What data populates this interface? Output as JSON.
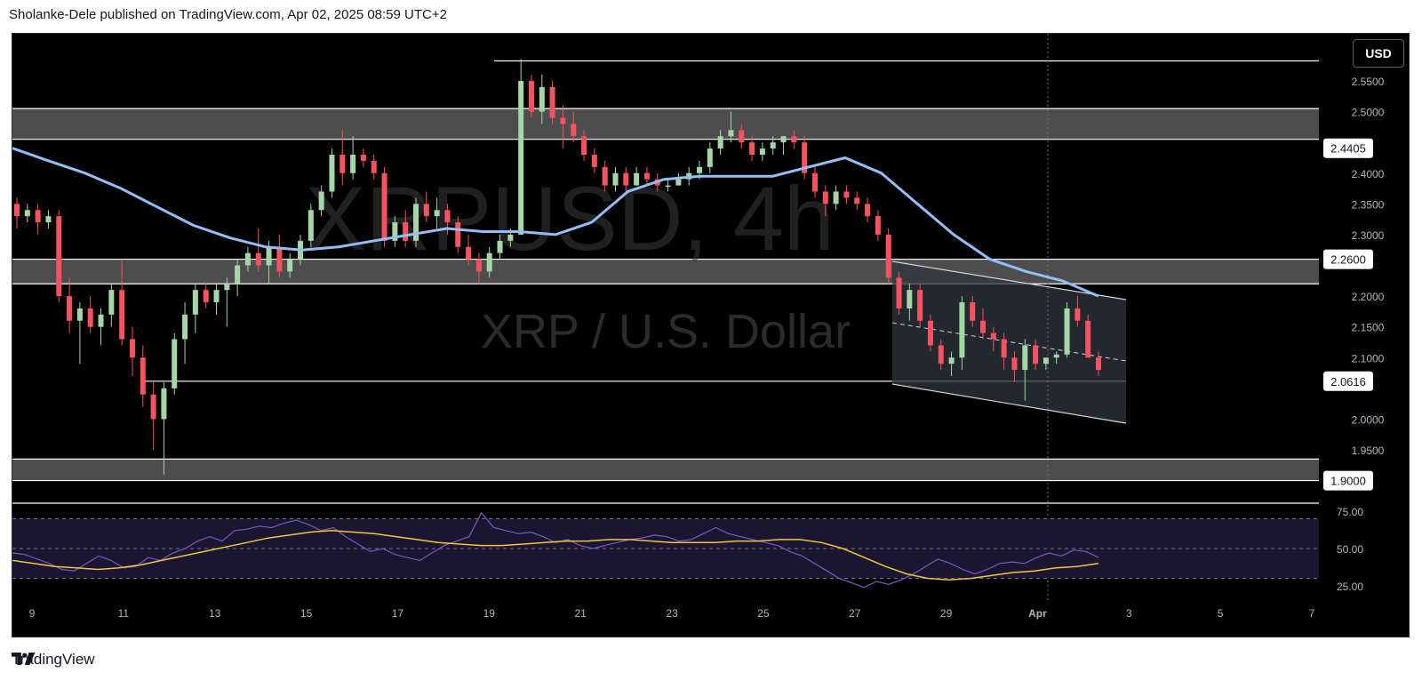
{
  "header": {
    "text": "Sholanke-Dele published on TradingView.com, Apr 02, 2025 08:59 UTC+2"
  },
  "watermark": {
    "symbol": "XRPUSD, 4h",
    "name": "XRP / U.S. Dollar"
  },
  "currency_button": "USD",
  "footer": {
    "brand": "TradingView"
  },
  "colors": {
    "background": "#000000",
    "up": "#a5d6a7",
    "down": "#f7525f",
    "ma": "#90bff9",
    "rsi": "#7e57c2",
    "rsi_ma": "#f0c53d",
    "zone": "#5a5a5a",
    "channel": "#ffffff"
  },
  "chart_data": {
    "type": "candlestick",
    "symbol": "XRPUSD",
    "timeframe": "4h",
    "price_axis": {
      "ticks": [
        "2.5500",
        "2.5000",
        "2.4000",
        "2.3500",
        "2.3000",
        "2.2000",
        "2.1500",
        "2.1000",
        "2.0000",
        "1.9500"
      ],
      "range": [
        1.86,
        2.605
      ]
    },
    "price_labels": [
      {
        "value": 2.4405,
        "text": "2.4405"
      },
      {
        "value": 2.26,
        "text": "2.2600"
      },
      {
        "value": 2.0616,
        "text": "2.0616"
      },
      {
        "value": 1.9,
        "text": "1.9000"
      }
    ],
    "time_axis": [
      "9",
      "11",
      "13",
      "15",
      "17",
      "19",
      "21",
      "23",
      "25",
      "27",
      "29",
      "Apr",
      "3",
      "5",
      "7"
    ],
    "zones": [
      {
        "from": 2.455,
        "to": 2.505
      },
      {
        "from": 2.22,
        "to": 2.26
      },
      {
        "from": 1.9,
        "to": 1.935
      }
    ],
    "horizontal_lines": [
      2.5825,
      2.0616
    ],
    "candles": [
      [
        2.35,
        2.36,
        2.31,
        2.33
      ],
      [
        2.33,
        2.35,
        2.32,
        2.34
      ],
      [
        2.34,
        2.35,
        2.3,
        2.32
      ],
      [
        2.32,
        2.34,
        2.31,
        2.33
      ],
      [
        2.33,
        2.34,
        2.19,
        2.2
      ],
      [
        2.2,
        2.23,
        2.14,
        2.16
      ],
      [
        2.16,
        2.19,
        2.09,
        2.18
      ],
      [
        2.18,
        2.2,
        2.14,
        2.15
      ],
      [
        2.15,
        2.18,
        2.12,
        2.17
      ],
      [
        2.17,
        2.22,
        2.15,
        2.21
      ],
      [
        2.21,
        2.26,
        2.12,
        2.13
      ],
      [
        2.13,
        2.15,
        2.07,
        2.1
      ],
      [
        2.1,
        2.12,
        2.02,
        2.04
      ],
      [
        2.04,
        2.06,
        1.95,
        2.0
      ],
      [
        2.0,
        2.06,
        1.91,
        2.05
      ],
      [
        2.05,
        2.14,
        2.04,
        2.13
      ],
      [
        2.13,
        2.19,
        2.09,
        2.17
      ],
      [
        2.17,
        2.22,
        2.14,
        2.21
      ],
      [
        2.21,
        2.22,
        2.18,
        2.19
      ],
      [
        2.19,
        2.22,
        2.17,
        2.21
      ],
      [
        2.21,
        2.23,
        2.15,
        2.22
      ],
      [
        2.22,
        2.26,
        2.2,
        2.25
      ],
      [
        2.25,
        2.28,
        2.24,
        2.27
      ],
      [
        2.27,
        2.31,
        2.24,
        2.25
      ],
      [
        2.25,
        2.29,
        2.22,
        2.28
      ],
      [
        2.28,
        2.3,
        2.23,
        2.24
      ],
      [
        2.24,
        2.27,
        2.23,
        2.26
      ],
      [
        2.26,
        2.3,
        2.25,
        2.29
      ],
      [
        2.29,
        2.35,
        2.28,
        2.34
      ],
      [
        2.34,
        2.38,
        2.33,
        2.37
      ],
      [
        2.37,
        2.44,
        2.36,
        2.43
      ],
      [
        2.43,
        2.47,
        2.38,
        2.4
      ],
      [
        2.4,
        2.46,
        2.39,
        2.43
      ],
      [
        2.43,
        2.44,
        2.41,
        2.42
      ],
      [
        2.42,
        2.43,
        2.39,
        2.4
      ],
      [
        2.4,
        2.41,
        2.28,
        2.29
      ],
      [
        2.29,
        2.33,
        2.28,
        2.32
      ],
      [
        2.32,
        2.34,
        2.28,
        2.29
      ],
      [
        2.29,
        2.36,
        2.28,
        2.35
      ],
      [
        2.35,
        2.37,
        2.32,
        2.33
      ],
      [
        2.33,
        2.36,
        2.31,
        2.34
      ],
      [
        2.34,
        2.35,
        2.3,
        2.32
      ],
      [
        2.32,
        2.33,
        2.27,
        2.28
      ],
      [
        2.28,
        2.3,
        2.25,
        2.26
      ],
      [
        2.26,
        2.27,
        2.22,
        2.24
      ],
      [
        2.24,
        2.28,
        2.23,
        2.27
      ],
      [
        2.27,
        2.3,
        2.26,
        2.29
      ],
      [
        2.29,
        2.31,
        2.28,
        2.3
      ],
      [
        2.3,
        2.585,
        2.3,
        2.55
      ],
      [
        2.55,
        2.56,
        2.49,
        2.5
      ],
      [
        2.5,
        2.56,
        2.48,
        2.54
      ],
      [
        2.54,
        2.55,
        2.48,
        2.49
      ],
      [
        2.49,
        2.51,
        2.44,
        2.48
      ],
      [
        2.48,
        2.5,
        2.45,
        2.46
      ],
      [
        2.46,
        2.47,
        2.42,
        2.43
      ],
      [
        2.43,
        2.44,
        2.4,
        2.41
      ],
      [
        2.41,
        2.42,
        2.37,
        2.38
      ],
      [
        2.38,
        2.41,
        2.37,
        2.4
      ],
      [
        2.4,
        2.41,
        2.37,
        2.38
      ],
      [
        2.38,
        2.41,
        2.38,
        2.4
      ],
      [
        2.4,
        2.41,
        2.38,
        2.39
      ],
      [
        2.39,
        2.4,
        2.37,
        2.38
      ],
      [
        2.38,
        2.39,
        2.37,
        2.38
      ],
      [
        2.38,
        2.4,
        2.38,
        2.39
      ],
      [
        2.39,
        2.41,
        2.38,
        2.4
      ],
      [
        2.4,
        2.42,
        2.39,
        2.41
      ],
      [
        2.41,
        2.45,
        2.4,
        2.44
      ],
      [
        2.44,
        2.47,
        2.43,
        2.46
      ],
      [
        2.46,
        2.5,
        2.45,
        2.47
      ],
      [
        2.47,
        2.48,
        2.44,
        2.45
      ],
      [
        2.45,
        2.46,
        2.42,
        2.43
      ],
      [
        2.43,
        2.45,
        2.42,
        2.44
      ],
      [
        2.44,
        2.46,
        2.43,
        2.45
      ],
      [
        2.45,
        2.46,
        2.43,
        2.46
      ],
      [
        2.46,
        2.47,
        2.44,
        2.45
      ],
      [
        2.45,
        2.46,
        2.39,
        2.4
      ],
      [
        2.4,
        2.41,
        2.36,
        2.37
      ],
      [
        2.37,
        2.38,
        2.33,
        2.35
      ],
      [
        2.35,
        2.38,
        2.34,
        2.37
      ],
      [
        2.37,
        2.38,
        2.35,
        2.36
      ],
      [
        2.36,
        2.37,
        2.34,
        2.35
      ],
      [
        2.35,
        2.36,
        2.32,
        2.33
      ],
      [
        2.33,
        2.34,
        2.29,
        2.3
      ],
      [
        2.3,
        2.31,
        2.22,
        2.23
      ],
      [
        2.23,
        2.24,
        2.17,
        2.18
      ],
      [
        2.18,
        2.22,
        2.16,
        2.21
      ],
      [
        2.21,
        2.22,
        2.15,
        2.16
      ],
      [
        2.16,
        2.17,
        2.11,
        2.12
      ],
      [
        2.12,
        2.13,
        2.08,
        2.09
      ],
      [
        2.09,
        2.11,
        2.07,
        2.1
      ],
      [
        2.1,
        2.2,
        2.08,
        2.19
      ],
      [
        2.19,
        2.2,
        2.15,
        2.16
      ],
      [
        2.16,
        2.18,
        2.13,
        2.14
      ],
      [
        2.14,
        2.15,
        2.11,
        2.13
      ],
      [
        2.13,
        2.14,
        2.08,
        2.1
      ],
      [
        2.1,
        2.11,
        2.06,
        2.08
      ],
      [
        2.08,
        2.13,
        2.03,
        2.12
      ],
      [
        2.12,
        2.13,
        2.08,
        2.09
      ],
      [
        2.09,
        2.1,
        2.08,
        2.1
      ],
      [
        2.1,
        2.11,
        2.09,
        2.105
      ],
      [
        2.105,
        2.19,
        2.1,
        2.18
      ],
      [
        2.18,
        2.2,
        2.15,
        2.16
      ],
      [
        2.16,
        2.17,
        2.1,
        2.1
      ],
      [
        2.1,
        2.11,
        2.07,
        2.08
      ]
    ],
    "moving_average": [
      2.4405,
      2.42,
      2.4,
      2.375,
      2.345,
      2.315,
      2.295,
      2.28,
      2.275,
      2.28,
      2.29,
      2.3,
      2.31,
      2.305,
      2.305,
      2.3,
      2.32,
      2.37,
      2.39,
      2.395,
      2.395,
      2.395,
      2.41,
      2.425,
      2.4,
      2.35,
      2.3,
      2.26,
      2.24,
      2.225,
      2.2
    ],
    "rsi": {
      "levels": [
        "75.00",
        "50.00",
        "25.00"
      ],
      "range": [
        20,
        80
      ],
      "values": [
        47,
        46,
        43,
        40,
        36,
        35,
        40,
        45,
        42,
        37,
        38,
        44,
        42,
        47,
        50,
        55,
        58,
        55,
        62,
        63,
        65,
        64,
        67,
        69,
        66,
        62,
        64,
        58,
        53,
        48,
        50,
        46,
        44,
        42,
        47,
        52,
        55,
        58,
        74,
        64,
        62,
        60,
        61,
        58,
        54,
        56,
        52,
        50,
        52,
        54,
        56,
        57,
        59,
        58,
        55,
        56,
        60,
        64,
        60,
        58,
        56,
        54,
        52,
        48,
        45,
        40,
        35,
        30,
        27,
        24,
        28,
        26,
        29,
        33,
        38,
        43,
        40,
        36,
        33,
        36,
        40,
        41,
        40,
        44,
        47,
        45,
        49,
        48,
        44
      ],
      "ma": [
        42,
        40,
        38,
        37,
        36,
        37,
        39,
        42,
        45,
        48,
        51,
        54,
        57,
        59,
        61,
        62,
        61,
        60,
        58,
        56,
        54,
        53,
        52,
        52,
        53,
        54,
        55,
        55,
        56,
        56,
        55,
        54,
        54,
        54,
        55,
        55,
        56,
        56,
        54,
        50,
        44,
        38,
        33,
        30,
        29,
        30,
        32,
        34,
        35,
        37,
        38,
        40
      ]
    }
  }
}
